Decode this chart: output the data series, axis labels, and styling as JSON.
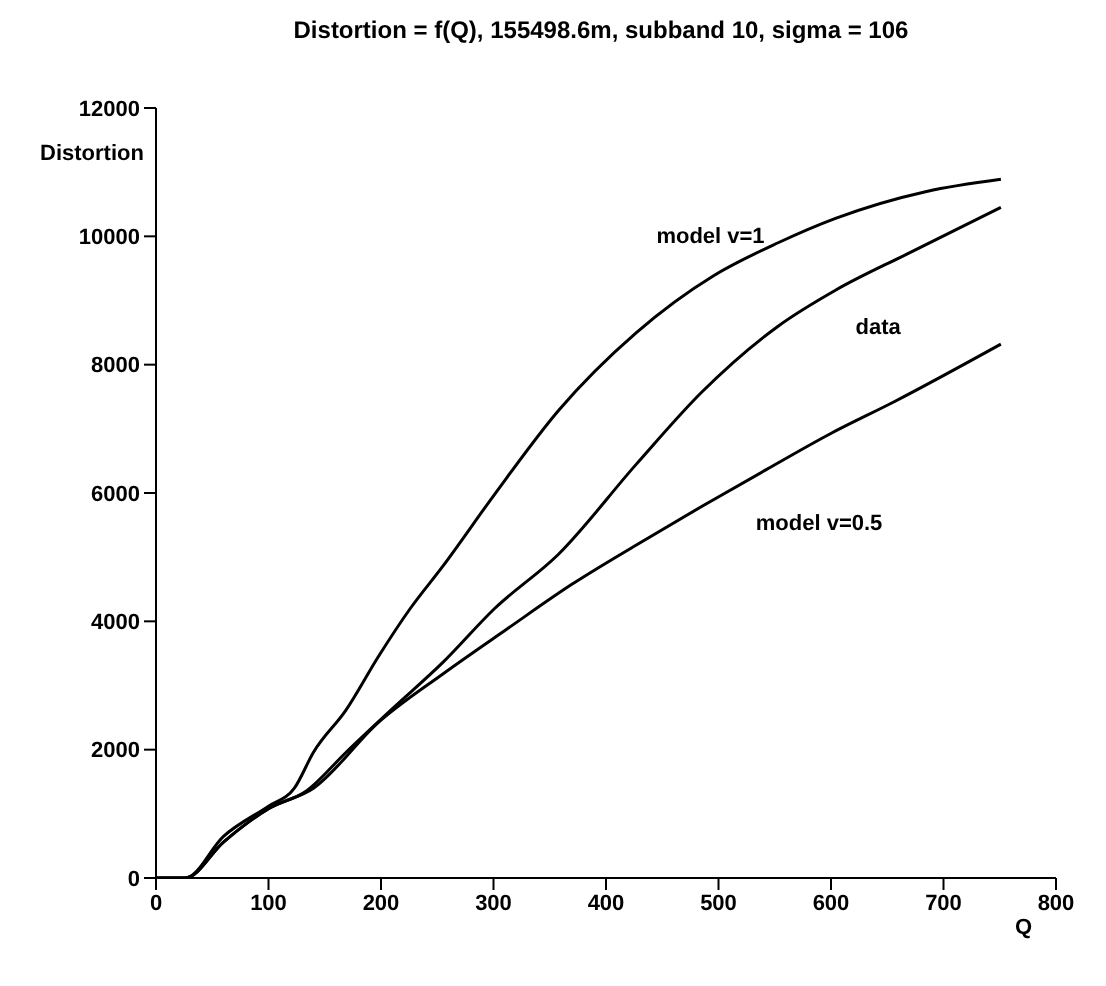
{
  "chart_data": {
    "type": "line",
    "title": "Distortion = f(Q),  155498.6m, subband 10, sigma = 106",
    "xlabel": "Q",
    "ylabel": "Distortion",
    "series": [
      {
        "name": "model v=1",
        "color": "#000000",
        "x": [
          0,
          26,
          60,
          100,
          123,
          140,
          169,
          198,
          226,
          255,
          301,
          358,
          427,
          496,
          553,
          604,
          685,
          751
        ],
        "values": [
          0,
          0,
          650,
          1120,
          1400,
          1960,
          2620,
          3460,
          4200,
          4860,
          5980,
          7290,
          8500,
          9390,
          9900,
          10280,
          10700,
          10890
        ]
      },
      {
        "name": "data",
        "color": "#000000",
        "x": [
          0,
          26,
          60,
          100,
          134,
          169,
          209,
          255,
          301,
          358,
          427,
          485,
          553,
          604,
          667,
          751
        ],
        "values": [
          0,
          0,
          560,
          1080,
          1360,
          1960,
          2620,
          3360,
          4200,
          5050,
          6450,
          7570,
          8600,
          9160,
          9720,
          10450
        ]
      },
      {
        "name": "model v=0.5",
        "color": "#000000",
        "x": [
          0,
          26,
          60,
          100,
          140,
          198,
          255,
          312,
          370,
          427,
          485,
          542,
          599,
          657,
          751
        ],
        "values": [
          0,
          0,
          560,
          1080,
          1400,
          2430,
          3180,
          3880,
          4580,
          5190,
          5790,
          6360,
          6920,
          7430,
          8320
        ]
      }
    ],
    "xlim": [
      0,
      800
    ],
    "xticks": [
      0,
      100,
      200,
      300,
      400,
      500,
      600,
      700,
      800
    ],
    "ylim": [
      0,
      12000
    ],
    "yticks": [
      0,
      2000,
      4000,
      6000,
      8000,
      10000,
      12000
    ],
    "grid": false,
    "legend": false,
    "marker": "none",
    "line_style": "solid"
  }
}
